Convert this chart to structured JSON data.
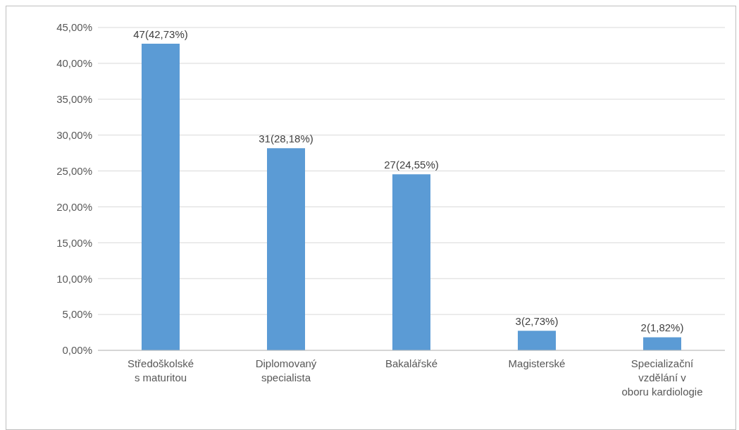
{
  "chart_data": {
    "type": "bar",
    "categories": [
      "Středoškolské\ns maturitou",
      "Diplomovaný\nspecialista",
      "Bakalářské",
      "Magisterské",
      "Specializační\nvzdělání v\noboru kardiologie"
    ],
    "values": [
      42.73,
      28.18,
      24.55,
      2.73,
      1.82
    ],
    "value_labels": [
      "47(42,73%)",
      "31(28,18%)",
      "27(24,55%)",
      "3(2,73%)",
      "2(1,82%)"
    ],
    "color": "#5b9bd5",
    "ylim": [
      0,
      45
    ],
    "yticks": [
      {
        "value": 0,
        "label": "0,00%"
      },
      {
        "value": 5,
        "label": "5,00%"
      },
      {
        "value": 10,
        "label": "10,00%"
      },
      {
        "value": 15,
        "label": "15,00%"
      },
      {
        "value": 20,
        "label": "20,00%"
      },
      {
        "value": 25,
        "label": "25,00%"
      },
      {
        "value": 30,
        "label": "30,00%"
      },
      {
        "value": 35,
        "label": "35,00%"
      },
      {
        "value": 40,
        "label": "40,00%"
      },
      {
        "value": 45,
        "label": "45,00%"
      }
    ],
    "grid": "y",
    "legend": false
  }
}
